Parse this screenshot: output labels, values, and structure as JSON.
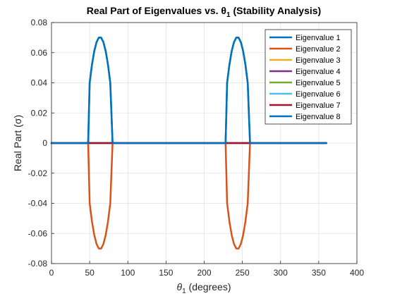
{
  "chart_data": {
    "type": "line",
    "title": "Real Part of Eigenvalues vs. θ",
    "title_sub": "1",
    "title_suffix": " (Stability Analysis)",
    "xlabel_symbol": "θ",
    "xlabel_sub": "1",
    "xlabel_suffix": " (degrees)",
    "ylabel": "Real Part (σ)",
    "xlim": [
      0,
      400
    ],
    "ylim": [
      -0.08,
      0.08
    ],
    "xticks": [
      "0",
      "50",
      "100",
      "150",
      "200",
      "250",
      "300",
      "350",
      "400"
    ],
    "yticks": [
      "-0.08",
      "-0.06",
      "-0.04",
      "-0.02",
      "0",
      "0.02",
      "0.04",
      "0.06",
      "0.08"
    ],
    "grid": true,
    "legend_position": "top-right",
    "series": [
      {
        "name": "Eigenvalue 1",
        "color": "#0072BD",
        "x": [
          0,
          45,
          48,
          50,
          53,
          56,
          59,
          62,
          65,
          68,
          71,
          74,
          77,
          80,
          82,
          225,
          228,
          230,
          233,
          236,
          239,
          242,
          245,
          248,
          251,
          254,
          257,
          260,
          262,
          360
        ],
        "y": [
          0,
          0,
          0,
          0.04,
          0.052,
          0.061,
          0.067,
          0.07,
          0.07,
          0.067,
          0.061,
          0.052,
          0.04,
          0,
          0,
          0,
          0,
          0.04,
          0.052,
          0.061,
          0.067,
          0.07,
          0.07,
          0.067,
          0.061,
          0.052,
          0.04,
          0,
          0,
          0
        ]
      },
      {
        "name": "Eigenvalue 2",
        "color": "#D95319",
        "x": [
          0,
          45,
          48,
          50,
          53,
          56,
          59,
          62,
          65,
          68,
          71,
          74,
          77,
          80,
          82,
          225,
          228,
          230,
          233,
          236,
          239,
          242,
          245,
          248,
          251,
          254,
          257,
          260,
          262,
          360
        ],
        "y": [
          0,
          0,
          0,
          -0.04,
          -0.052,
          -0.061,
          -0.067,
          -0.07,
          -0.07,
          -0.067,
          -0.061,
          -0.052,
          -0.04,
          0,
          0,
          0,
          0,
          -0.04,
          -0.052,
          -0.061,
          -0.067,
          -0.07,
          -0.07,
          -0.067,
          -0.061,
          -0.052,
          -0.04,
          0,
          0,
          0
        ]
      },
      {
        "name": "Eigenvalue 3",
        "color": "#EDB120",
        "x": [
          0,
          360
        ],
        "y": [
          0,
          0
        ]
      },
      {
        "name": "Eigenvalue 4",
        "color": "#7E2F8E",
        "x": [
          0,
          360
        ],
        "y": [
          0,
          0
        ]
      },
      {
        "name": "Eigenvalue 5",
        "color": "#77AC30",
        "x": [
          0,
          360
        ],
        "y": [
          0,
          0
        ]
      },
      {
        "name": "Eigenvalue 6",
        "color": "#4DBEEE",
        "x": [
          0,
          360
        ],
        "y": [
          0,
          0
        ]
      },
      {
        "name": "Eigenvalue 7",
        "color": "#A2142F",
        "x": [
          0,
          360
        ],
        "y": [
          0,
          0
        ]
      },
      {
        "name": "Eigenvalue 8",
        "color": "#0072BD",
        "x": [
          0,
          45,
          48,
          50,
          53,
          56,
          59,
          62,
          65,
          68,
          71,
          74,
          77,
          80,
          82,
          225,
          228,
          230,
          233,
          236,
          239,
          242,
          245,
          248,
          251,
          254,
          257,
          260,
          262,
          360
        ],
        "y": [
          0,
          0,
          0,
          0.04,
          0.052,
          0.061,
          0.067,
          0.07,
          0.07,
          0.067,
          0.061,
          0.052,
          0.04,
          0,
          0,
          0,
          0,
          0.04,
          0.052,
          0.061,
          0.067,
          0.07,
          0.07,
          0.067,
          0.061,
          0.052,
          0.04,
          0,
          0,
          0
        ]
      }
    ]
  }
}
